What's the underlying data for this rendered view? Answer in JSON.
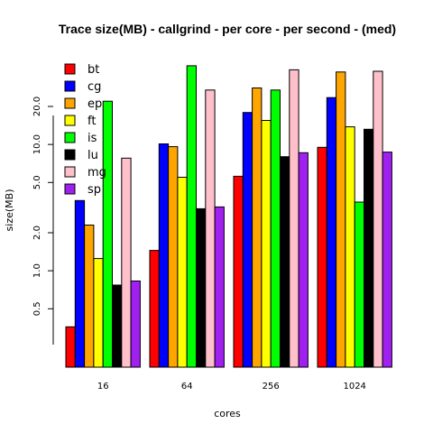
{
  "chart_data": {
    "type": "bar",
    "title": "Trace size(MB) - callgrind - per core - per second - (med)",
    "xlabel": "cores",
    "ylabel": "size(MB)",
    "y_scale": "log",
    "ylim": [
      0.33,
      45
    ],
    "yticks": [
      0.5,
      1.0,
      2.0,
      5.0,
      10.0,
      20.0
    ],
    "ytick_labels": [
      "0.5",
      "1.0",
      "2.0",
      "5.0",
      "10.0",
      "20.0"
    ],
    "categories": [
      "16",
      "64",
      "256",
      "1024"
    ],
    "legend_position": "top-left",
    "grid": false,
    "series": [
      {
        "name": "bt",
        "color": "#ff0000",
        "values": [
          0.36,
          1.45,
          5.6,
          9.5
        ]
      },
      {
        "name": "cg",
        "color": "#0000ff",
        "values": [
          3.6,
          10.1,
          17.9,
          23.5
        ]
      },
      {
        "name": "ep",
        "color": "#ffa500",
        "values": [
          2.3,
          9.6,
          28.0,
          37.5
        ]
      },
      {
        "name": "ft",
        "color": "#ffff00",
        "values": [
          1.25,
          5.5,
          15.5,
          13.8
        ]
      },
      {
        "name": "is",
        "color": "#00ff00",
        "values": [
          22.0,
          42.0,
          27.0,
          3.5
        ]
      },
      {
        "name": "lu",
        "color": "#000000",
        "values": [
          0.77,
          3.1,
          8.0,
          13.2
        ]
      },
      {
        "name": "mg",
        "color": "#ffc0cb",
        "values": [
          7.8,
          27.0,
          39.0,
          38.0
        ]
      },
      {
        "name": "sp",
        "color": "#a020f0",
        "values": [
          0.83,
          3.2,
          8.6,
          8.7
        ]
      }
    ]
  }
}
